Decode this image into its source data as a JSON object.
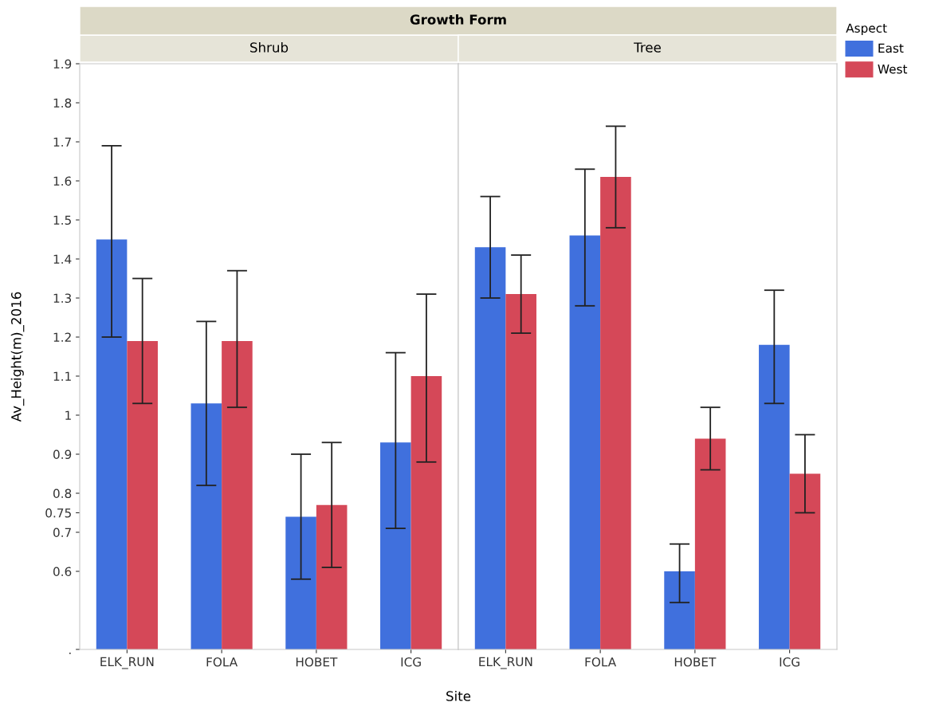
{
  "chart_data": [
    {
      "type": "bar",
      "title": "Shrub",
      "annotations": [
        "Growth Form"
      ],
      "xlabel": "Site",
      "ylabel": "Av_Height(m)_2016",
      "categories": [
        "ELK_RUN",
        "FOLA",
        "HOBET",
        "ICG"
      ],
      "series": [
        {
          "name": "East",
          "color": "#4070dd",
          "values": [
            1.45,
            1.03,
            0.74,
            0.93
          ],
          "errors": [
            [
              1.2,
              1.69
            ],
            [
              0.82,
              1.24
            ],
            [
              0.58,
              0.9
            ],
            [
              0.71,
              1.16
            ]
          ]
        },
        {
          "name": "West",
          "color": "#d54858",
          "values": [
            1.19,
            1.19,
            0.77,
            1.1
          ],
          "errors": [
            [
              1.03,
              1.35
            ],
            [
              1.02,
              1.37
            ],
            [
              0.61,
              0.93
            ],
            [
              0.88,
              1.31
            ]
          ]
        }
      ],
      "ylim": [
        0.4,
        1.9
      ],
      "yticks": [
        {
          "value": 0.4,
          "label": "."
        },
        0.6,
        0.7,
        0.75,
        0.8,
        0.9,
        1,
        1.1,
        1.2,
        1.3,
        1.4,
        1.5,
        1.6,
        1.7,
        1.8,
        1.9
      ],
      "grid": false,
      "legend": "right"
    },
    {
      "type": "bar",
      "title": "Tree",
      "legend_title": "Aspect",
      "categories": [
        "ELK_RUN",
        "FOLA",
        "HOBET",
        "ICG"
      ],
      "series": [
        {
          "name": "East",
          "color": "#4070dd",
          "values": [
            1.43,
            1.46,
            0.6,
            1.18
          ],
          "errors": [
            [
              1.3,
              1.56
            ],
            [
              1.28,
              1.63
            ],
            [
              0.52,
              0.67
            ],
            [
              1.03,
              1.32
            ]
          ]
        },
        {
          "name": "West",
          "color": "#d54858",
          "values": [
            1.31,
            1.61,
            0.94,
            0.85
          ],
          "errors": [
            [
              1.21,
              1.41
            ],
            [
              1.48,
              1.74
            ],
            [
              0.86,
              1.02
            ],
            [
              0.75,
              0.95
            ]
          ]
        }
      ],
      "ylim": [
        0.4,
        1.9
      ],
      "tick_labels": "x",
      "grid": false,
      "legend": "right"
    }
  ]
}
